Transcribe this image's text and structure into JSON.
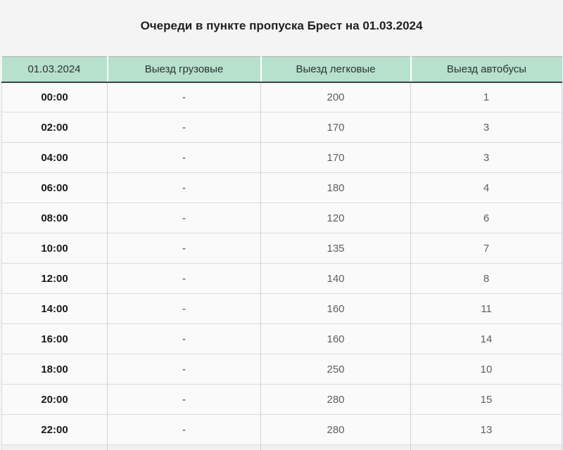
{
  "title": "Очереди в пункте пропуска Брест на 01.03.2024",
  "colors": {
    "page_background": "#f4f4f5",
    "header_background": "#b7e1cd",
    "header_divider": "#3c4043",
    "row_background": "#fafafa",
    "time_text": "#17181a",
    "value_text": "#5c5f63"
  },
  "chart_data": {
    "type": "table",
    "title": "Очереди в пункте пропуска Брест на 01.03.2024",
    "columns": [
      "01.03.2024",
      "Выезд грузовые",
      "Выезд легковые",
      "Выезд автобусы"
    ],
    "rows": [
      [
        "00:00",
        "-",
        "200",
        "1"
      ],
      [
        "02:00",
        "-",
        "170",
        "3"
      ],
      [
        "04:00",
        "-",
        "170",
        "3"
      ],
      [
        "06:00",
        "-",
        "180",
        "4"
      ],
      [
        "08:00",
        "-",
        "120",
        "6"
      ],
      [
        "10:00",
        "-",
        "135",
        "7"
      ],
      [
        "12:00",
        "-",
        "140",
        "8"
      ],
      [
        "14:00",
        "-",
        "160",
        "11"
      ],
      [
        "16:00",
        "-",
        "160",
        "14"
      ],
      [
        "18:00",
        "-",
        "250",
        "10"
      ],
      [
        "20:00",
        "-",
        "280",
        "15"
      ],
      [
        "22:00",
        "-",
        "280",
        "13"
      ]
    ]
  }
}
